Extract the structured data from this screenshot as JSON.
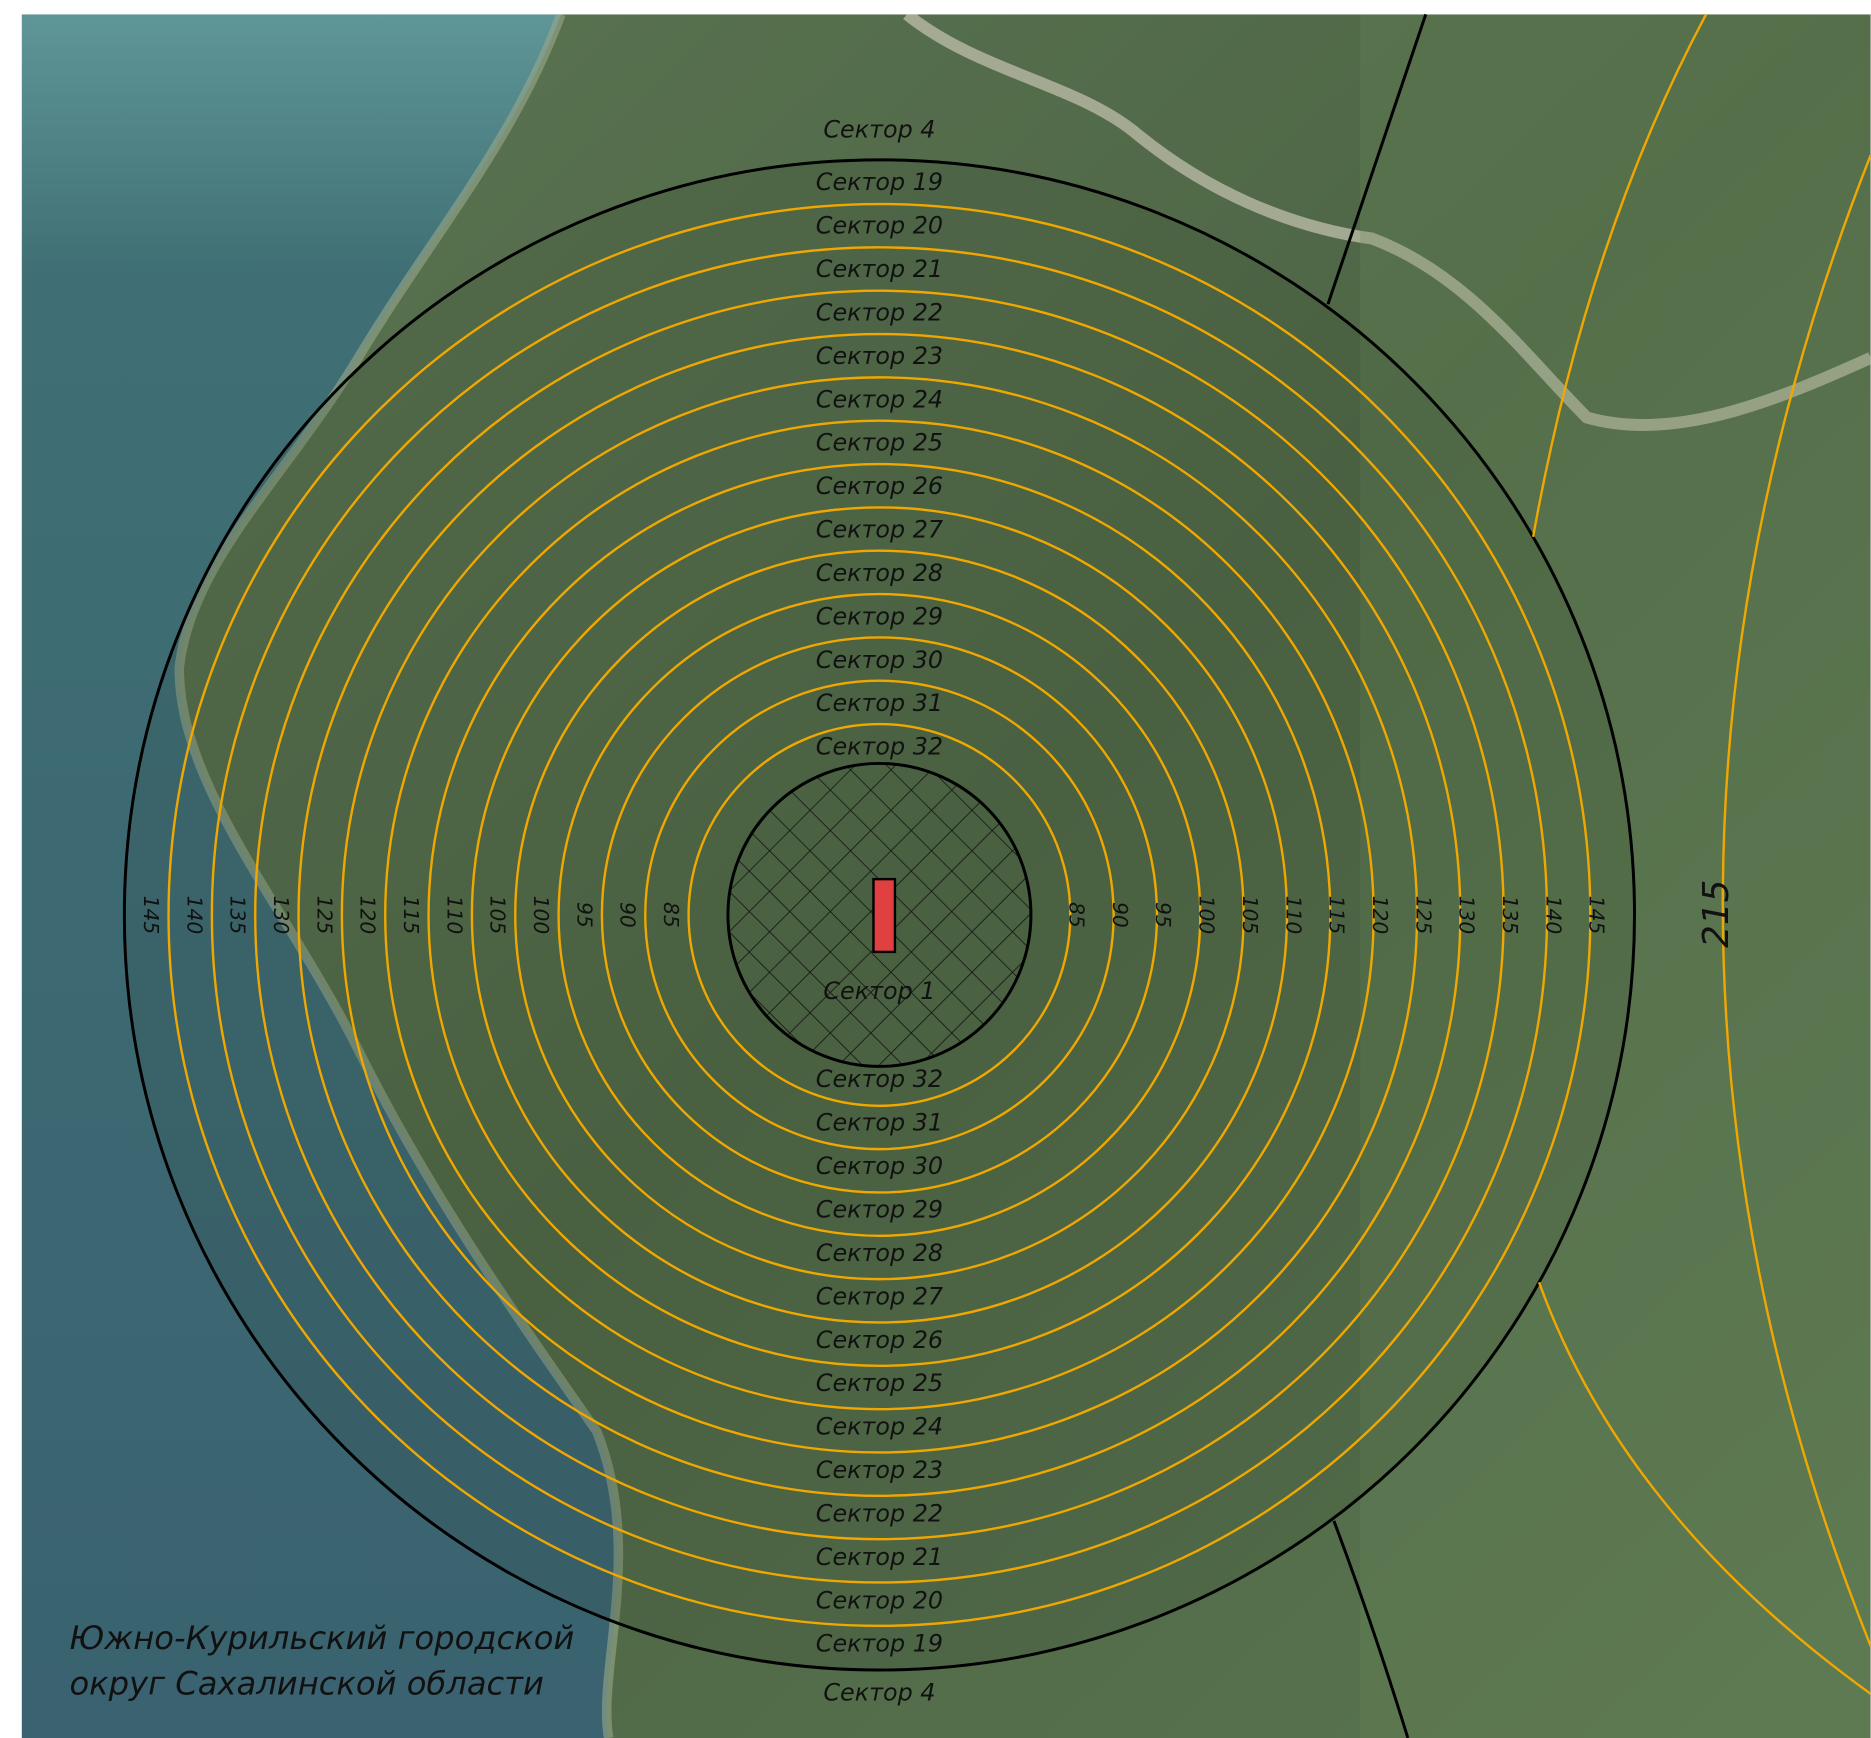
{
  "map": {
    "sectors_top": [
      "Сектор 4",
      "Сектор 19",
      "Сектор 20",
      "Сектор 21",
      "Сектор 22",
      "Сектор 23",
      "Сектор 24",
      "Сектор 25",
      "Сектор 26",
      "Сектор 27",
      "Сектор 28",
      "Сектор 29",
      "Сектор 30",
      "Сектор 31",
      "Сектор 32"
    ],
    "center_sector": "Сектор 1",
    "sectors_bottom": [
      "Сектор 32",
      "Сектор 31",
      "Сектор 30",
      "Сектор 29",
      "Сектор 28",
      "Сектор 27",
      "Сектор 26",
      "Сектор 25",
      "Сектор 24",
      "Сектор 23",
      "Сектор 22",
      "Сектор 21",
      "Сектор 20",
      "Сектор 19",
      "Сектор 4"
    ],
    "ring_labels_left": [
      145,
      140,
      135,
      130,
      125,
      120,
      115,
      110,
      105,
      100,
      95,
      90,
      85
    ],
    "ring_labels_right": [
      85,
      90,
      95,
      100,
      105,
      110,
      115,
      120,
      125,
      130,
      135,
      140,
      145
    ],
    "outer_ring_label": 215,
    "region": [
      "Южно-Курильский городской",
      "округ Сахалинской области"
    ]
  }
}
